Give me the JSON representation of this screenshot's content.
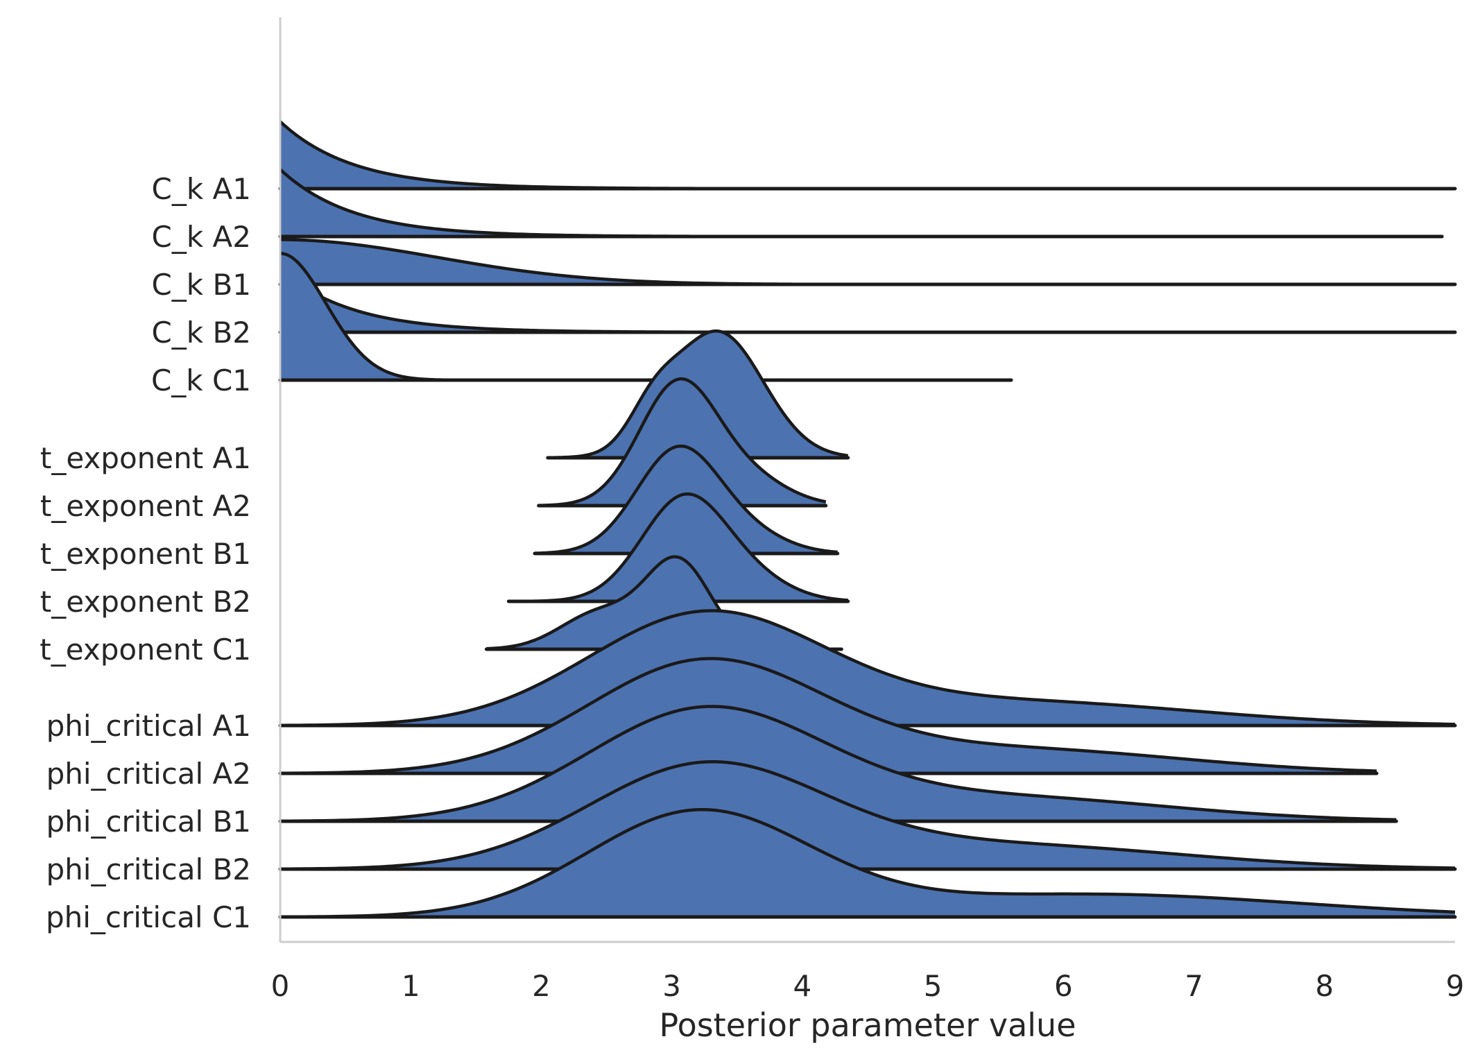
{
  "chart_data": {
    "type": "ridgeline",
    "xlabel": "Posterior parameter value",
    "xlim": [
      0,
      9
    ],
    "xticks": [
      0,
      1,
      2,
      3,
      4,
      5,
      6,
      7,
      8,
      9
    ],
    "grid": false,
    "fill_color": "#4c72b0",
    "line_color": "#1a1a1a",
    "groups": [
      {
        "series": [
          {
            "name": "C_k A1",
            "range": [
              0,
              9
            ],
            "dist": "exp",
            "scale": 0.55,
            "peak": 0.45
          },
          {
            "name": "C_k A2",
            "range": [
              0,
              8.9
            ],
            "dist": "exp",
            "scale": 0.55,
            "peak": 0.45
          },
          {
            "name": "C_k B1",
            "range": [
              0,
              9
            ],
            "dist": "halfnorm",
            "scale": 1.2,
            "peak": 0.3
          },
          {
            "name": "C_k B2",
            "range": [
              0,
              9
            ],
            "dist": "exp",
            "scale": 0.55,
            "peak": 0.42
          },
          {
            "name": "C_k C1",
            "range": [
              0,
              5.6
            ],
            "dist": "halfnorm",
            "scale": 0.35,
            "peak": 0.85
          }
        ]
      },
      {
        "series": [
          {
            "name": "t_exponent A1",
            "range": [
              2.05,
              4.35
            ],
            "dist": "mix",
            "comps": [
              [
                3.35,
                0.35,
                1
              ],
              [
                2.85,
                0.18,
                0.25
              ]
            ],
            "peak": 0.85
          },
          {
            "name": "t_exponent A2",
            "range": [
              1.98,
              4.18
            ],
            "dist": "mix",
            "comps": [
              [
                3.05,
                0.3,
                1
              ],
              [
                3.6,
                0.3,
                0.2
              ]
            ],
            "peak": 0.85
          },
          {
            "name": "t_exponent B1",
            "range": [
              1.95,
              4.27
            ],
            "dist": "mix",
            "comps": [
              [
                3.05,
                0.32,
                1
              ],
              [
                3.6,
                0.3,
                0.15
              ]
            ],
            "peak": 0.72
          },
          {
            "name": "t_exponent B2",
            "range": [
              1.75,
              4.35
            ],
            "dist": "mix",
            "comps": [
              [
                3.1,
                0.33,
                1
              ],
              [
                3.65,
                0.3,
                0.15
              ]
            ],
            "peak": 0.72
          },
          {
            "name": "t_exponent C1",
            "range": [
              1.58,
              4.3
            ],
            "dist": "mix",
            "comps": [
              [
                3.05,
                0.25,
                1
              ],
              [
                2.45,
                0.3,
                0.42
              ]
            ],
            "peak": 0.62
          }
        ]
      },
      {
        "series": [
          {
            "name": "phi_critical A1",
            "range": [
              0,
              9
            ],
            "dist": "mix",
            "comps": [
              [
                3.25,
                0.9,
                1
              ],
              [
                5.6,
                1.4,
                0.22
              ]
            ],
            "peak": 0.77
          },
          {
            "name": "phi_critical A2",
            "range": [
              0,
              8.4
            ],
            "dist": "mix",
            "comps": [
              [
                3.25,
                0.9,
                1
              ],
              [
                5.6,
                1.3,
                0.22
              ]
            ],
            "peak": 0.77
          },
          {
            "name": "phi_critical B1",
            "range": [
              0,
              8.55
            ],
            "dist": "mix",
            "comps": [
              [
                3.25,
                0.9,
                1
              ],
              [
                5.5,
                1.3,
                0.22
              ]
            ],
            "peak": 0.77
          },
          {
            "name": "phi_critical B2",
            "range": [
              0,
              9
            ],
            "dist": "mix",
            "comps": [
              [
                3.25,
                0.9,
                1
              ],
              [
                5.5,
                1.4,
                0.24
              ]
            ],
            "peak": 0.72
          },
          {
            "name": "phi_critical C1",
            "range": [
              0,
              9
            ],
            "dist": "mix",
            "comps": [
              [
                3.2,
                0.85,
                1
              ],
              [
                6.2,
                1.6,
                0.22
              ]
            ],
            "peak": 0.72
          }
        ]
      }
    ]
  }
}
